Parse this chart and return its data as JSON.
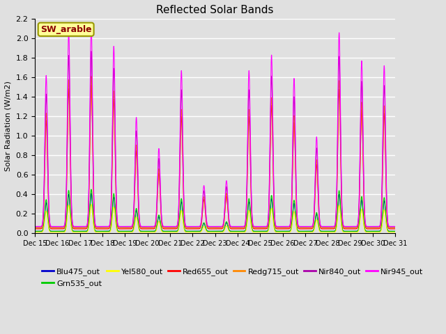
{
  "title": "Reflected Solar Bands",
  "ylabel": "Solar Radiation (W/m2)",
  "xlabel": "",
  "annotation_text": "SW_arable",
  "annotation_color": "#8B0000",
  "annotation_bg": "#FFFF99",
  "annotation_border": "#999900",
  "ylim": [
    0,
    2.2
  ],
  "yticks": [
    0.0,
    0.2,
    0.4,
    0.6,
    0.8,
    1.0,
    1.2,
    1.4,
    1.6,
    1.8,
    2.0,
    2.2
  ],
  "background_color": "#e0e0e0",
  "axes_bg": "#e0e0e0",
  "grid_color": "#ffffff",
  "lines": [
    {
      "label": "Blu475_out",
      "color": "#0000cc"
    },
    {
      "label": "Grn535_out",
      "color": "#00cc00"
    },
    {
      "label": "Yel580_out",
      "color": "#ffff00"
    },
    {
      "label": "Red655_out",
      "color": "#ff0000"
    },
    {
      "label": "Redg715_out",
      "color": "#ff8800"
    },
    {
      "label": "Nir840_out",
      "color": "#aa00aa"
    },
    {
      "label": "Nir945_out",
      "color": "#ff00ff"
    }
  ],
  "num_days": 16,
  "start_day": 15,
  "points_per_day": 288,
  "day_peaks_nir945": [
    1.55,
    2.0,
    2.05,
    1.85,
    1.12,
    0.8,
    1.6,
    0.42,
    0.47,
    1.6,
    1.76,
    1.52,
    0.92,
    1.99,
    1.7,
    1.65
  ],
  "scales": {
    "Nir945_out": 1.0,
    "Nir840_out": 0.88,
    "Redg715_out": 0.76,
    "Red655_out": 0.72,
    "Blu475_out": 0.19,
    "Grn535_out": 0.21,
    "Yel580_out": 0.14
  },
  "baselines": {
    "Nir945_out": 0.07,
    "Nir840_out": 0.065,
    "Redg715_out": 0.055,
    "Red655_out": 0.045,
    "Blu475_out": 0.02,
    "Grn535_out": 0.02,
    "Yel580_out": 0.01
  }
}
